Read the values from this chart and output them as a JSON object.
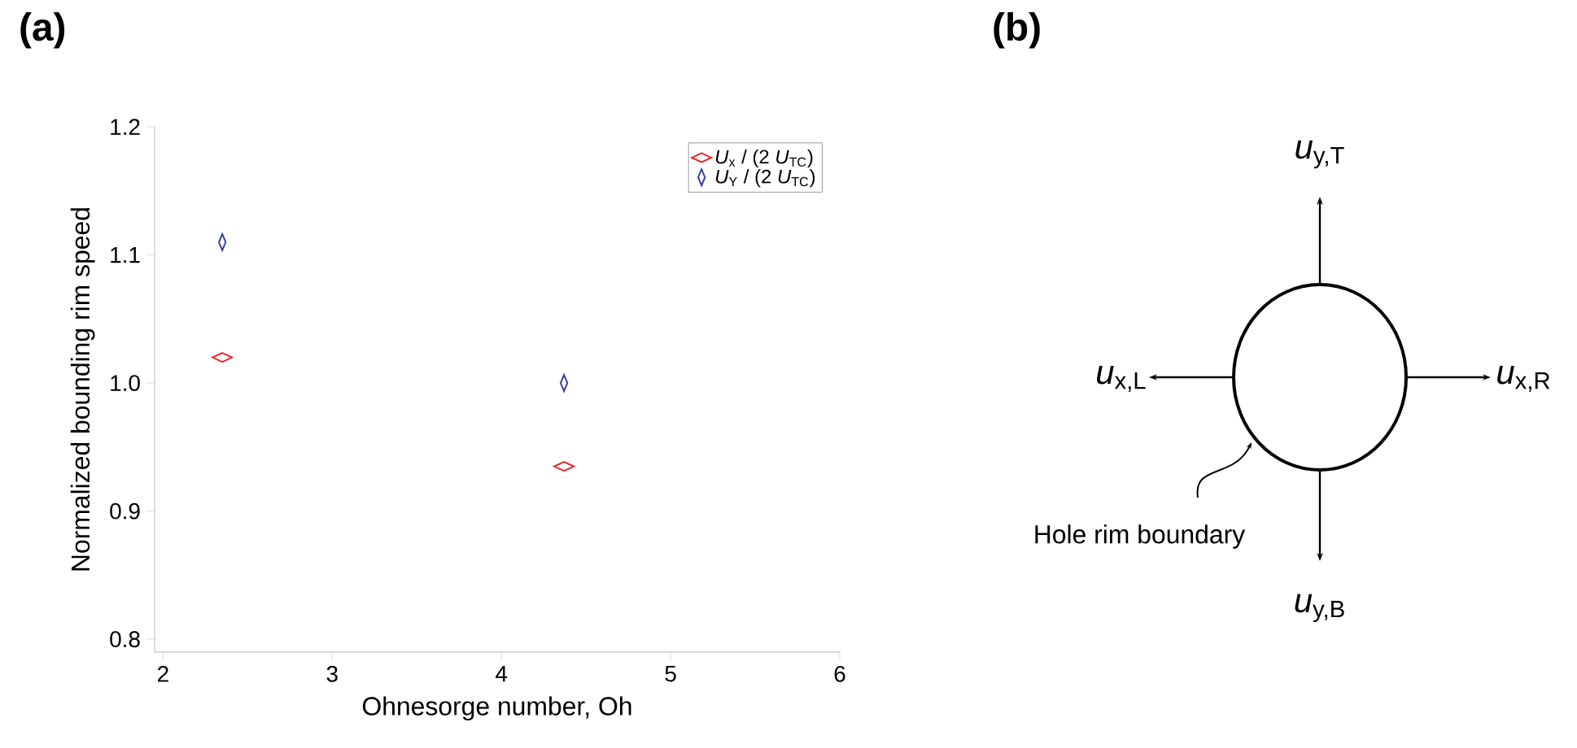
{
  "chart_data": [
    {
      "type": "scatter",
      "title": "(a)",
      "xlabel": "Ohnesorge number, Oh",
      "ylabel": "Normalized bounding rim speed",
      "xlim": [
        1.95,
        6
      ],
      "ylim": [
        0.79,
        1.2
      ],
      "xticks": [
        2,
        3,
        4,
        5,
        6
      ],
      "yticks": [
        0.8,
        0.9,
        {
          "value": 1,
          "label": "1.0"
        },
        1.1,
        1.2
      ],
      "marker": "diamond",
      "legend": "top right",
      "grid": false,
      "x": [
        2.35,
        4.37
      ],
      "series": [
        {
          "name": "*U*$_{x}$ / (2 *U*$_{TC}$)",
          "color": "#e8282b",
          "values": [
            1.02,
            0.935
          ]
        },
        {
          "name": "*U*$_{Y}$ / (2 *U*$_{TC}$)",
          "color": "#3a3ea8",
          "values": [
            1.11,
            1.0
          ]
        }
      ]
    },
    {
      "type": "other",
      "title": "(b)",
      "annotations": [
        "*u*$_{y,T}$",
        "*u*$_{x,L}$",
        "*u*$_{x,R}$",
        "Hole rim boundary",
        "*u*$_{y,B}$"
      ]
    }
  ]
}
